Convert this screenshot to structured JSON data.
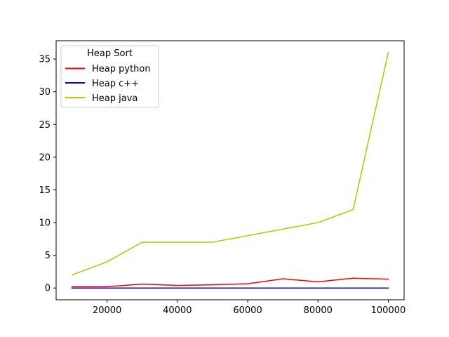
{
  "chart_data": {
    "type": "line",
    "title": "",
    "xlabel": "",
    "ylabel": "",
    "x": [
      10000,
      20000,
      30000,
      40000,
      50000,
      60000,
      70000,
      80000,
      90000,
      100000
    ],
    "xlim": [
      5500,
      104500
    ],
    "ylim": [
      -1.8,
      37.8
    ],
    "x_ticks": [
      20000,
      40000,
      60000,
      80000,
      100000
    ],
    "y_ticks": [
      0,
      5,
      10,
      15,
      20,
      25,
      30,
      35
    ],
    "x_tick_labels": [
      "20000",
      "40000",
      "60000",
      "80000",
      "100000"
    ],
    "y_tick_labels": [
      "0",
      "5",
      "10",
      "15",
      "20",
      "25",
      "30",
      "35"
    ],
    "grid": false,
    "legend": {
      "title": "Heap Sort",
      "position": "top-left"
    },
    "series": [
      {
        "name": "Heap python",
        "color": "#ff0000",
        "values": [
          0.2,
          0.2,
          0.6,
          0.4,
          0.5,
          0.65,
          1.4,
          0.95,
          1.5,
          1.35
        ]
      },
      {
        "name": "Heap c++",
        "color": "#0000ff",
        "values": [
          0.0,
          0.0,
          0.0,
          0.0,
          0.0,
          0.0,
          0.0,
          0.0,
          0.0,
          0.0
        ]
      },
      {
        "name": "Heap java",
        "color": "#bfbf00",
        "values": [
          2,
          4,
          7,
          7,
          7,
          8,
          9,
          10,
          12,
          36
        ]
      }
    ]
  }
}
